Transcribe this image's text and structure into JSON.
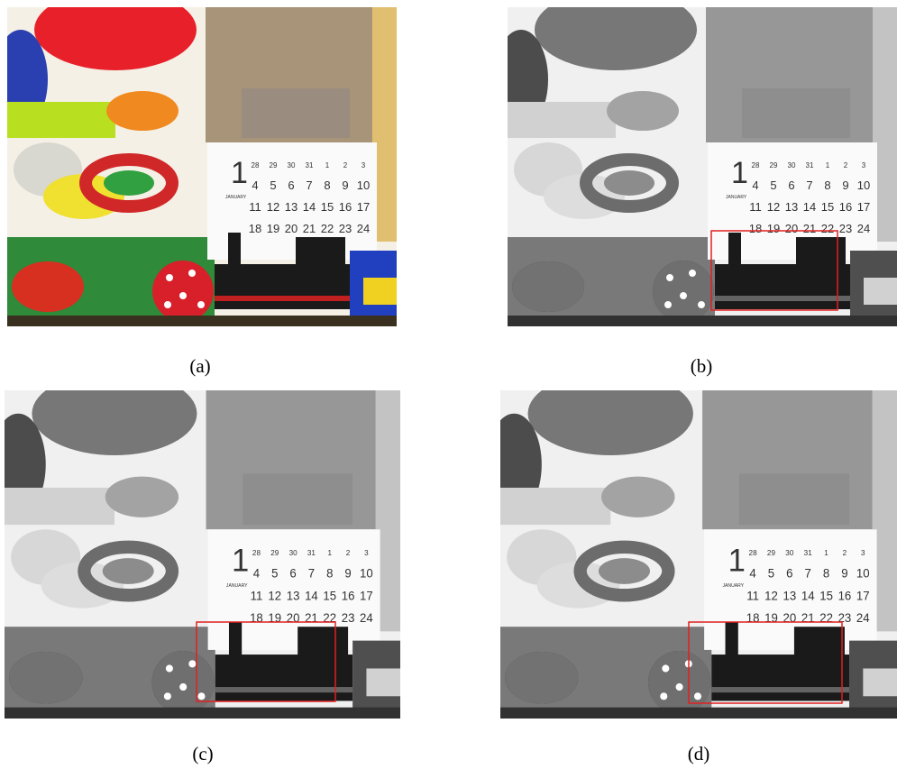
{
  "panels": [
    {
      "caption": "(a)"
    },
    {
      "caption": "(b)"
    },
    {
      "caption": "(c)"
    },
    {
      "caption": "(d)"
    }
  ],
  "calendar": {
    "month": "1",
    "month_name": "JANUARY",
    "weeks": [
      [
        "28",
        "29",
        "30",
        "31",
        "1",
        "2",
        "3"
      ],
      [
        "4",
        "5",
        "6",
        "7",
        "8",
        "9",
        "10"
      ],
      [
        "11",
        "12",
        "13",
        "14",
        "15",
        "16",
        "17"
      ],
      [
        "18",
        "19",
        "20",
        "21",
        "22",
        "23",
        "24"
      ]
    ]
  }
}
